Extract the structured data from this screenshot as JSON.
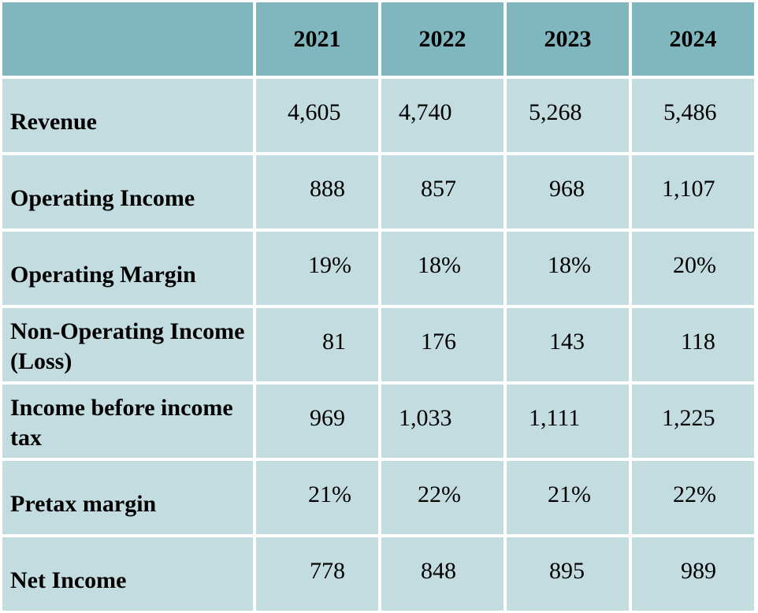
{
  "table": {
    "years": [
      "2021",
      "2022",
      "2023",
      "2024"
    ],
    "rows": [
      {
        "label": "Revenue",
        "values": [
          "4,605",
          "4,740",
          "5,268",
          "5,486"
        ]
      },
      {
        "label": "Operating Income",
        "values": [
          "888",
          "857",
          "968",
          "1,107"
        ]
      },
      {
        "label": "Operating Margin",
        "values": [
          "19%",
          "18%",
          "18%",
          "20%"
        ]
      },
      {
        "label": "Non-Operating Income (Loss)",
        "values": [
          "81",
          "176",
          "143",
          "118"
        ]
      },
      {
        "label": "Income before income tax",
        "values": [
          "969",
          "1,033",
          "1,111",
          "1,225"
        ]
      },
      {
        "label": "Pretax margin",
        "values": [
          "21%",
          "22%",
          "21%",
          "22%"
        ]
      },
      {
        "label": "Net Income",
        "values": [
          "778",
          "848",
          "895",
          "989"
        ]
      }
    ],
    "colors": {
      "header_fill": "#80b7bf",
      "body_fill": "#c3dce0",
      "grid_lines": "#ffffff"
    }
  }
}
